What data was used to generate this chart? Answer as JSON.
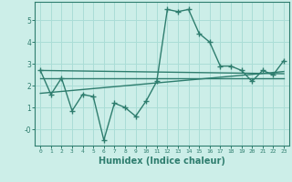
{
  "xlabel": "Humidex (Indice chaleur)",
  "bg_color": "#cceee8",
  "line_color": "#2e7d6e",
  "grid_color": "#aaddd6",
  "xlim": [
    -0.5,
    23.5
  ],
  "ylim": [
    -0.75,
    5.85
  ],
  "series1_x": [
    0,
    1,
    2,
    3,
    4,
    5,
    6,
    7,
    8,
    9,
    10,
    11,
    12,
    13,
    14,
    15,
    16,
    17,
    18,
    19,
    20,
    21,
    22,
    23
  ],
  "series1_y": [
    2.7,
    1.6,
    2.35,
    0.85,
    1.6,
    1.5,
    -0.5,
    1.2,
    1.0,
    0.6,
    1.3,
    2.2,
    5.5,
    5.4,
    5.5,
    4.4,
    4.0,
    2.9,
    2.9,
    2.7,
    2.2,
    2.7,
    2.5,
    3.15
  ],
  "line2_x": [
    0,
    23
  ],
  "line2_y": [
    2.7,
    2.55
  ],
  "line3_x": [
    0,
    23
  ],
  "line3_y": [
    2.35,
    2.35
  ],
  "line4_x": [
    0,
    23
  ],
  "line4_y": [
    1.65,
    2.65
  ],
  "yticks": [
    0,
    1,
    2,
    3,
    4,
    5
  ],
  "ytick_labels": [
    "-0",
    "1",
    "2",
    "3",
    "4",
    "5"
  ],
  "xticks": [
    0,
    1,
    2,
    3,
    4,
    5,
    6,
    7,
    8,
    9,
    10,
    11,
    12,
    13,
    14,
    15,
    16,
    17,
    18,
    19,
    20,
    21,
    22,
    23
  ],
  "linewidth": 1.0,
  "markersize": 4.5
}
